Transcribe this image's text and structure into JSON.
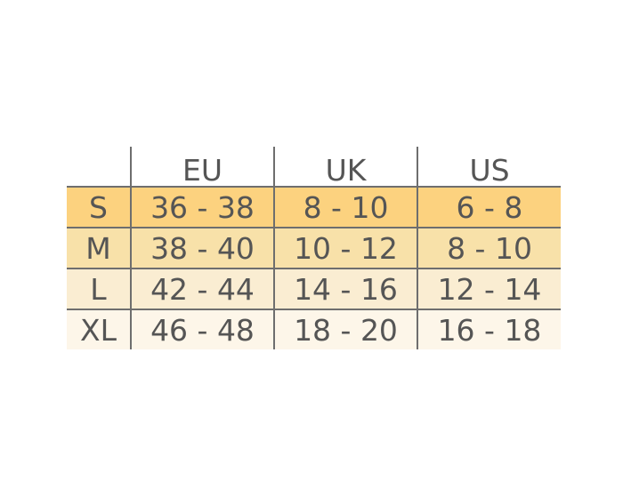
{
  "table": {
    "headers": [
      "",
      "EU",
      "UK",
      "US"
    ],
    "rows": [
      {
        "size": "S",
        "eu": "36 - 38",
        "uk": "8 - 10",
        "us": "6 - 8"
      },
      {
        "size": "M",
        "eu": "38 - 40",
        "uk": "10 - 12",
        "us": "8 - 10"
      },
      {
        "size": "L",
        "eu": "42 - 44",
        "uk": "14 - 16",
        "us": "12 - 14"
      },
      {
        "size": "XL",
        "eu": "46 - 48",
        "uk": "18 - 20",
        "us": "16 - 18"
      }
    ],
    "row_colors": [
      "#fcd27f",
      "#f8e1a9",
      "#faedd2",
      "#fdf6e9"
    ],
    "text_color": "#555555"
  }
}
